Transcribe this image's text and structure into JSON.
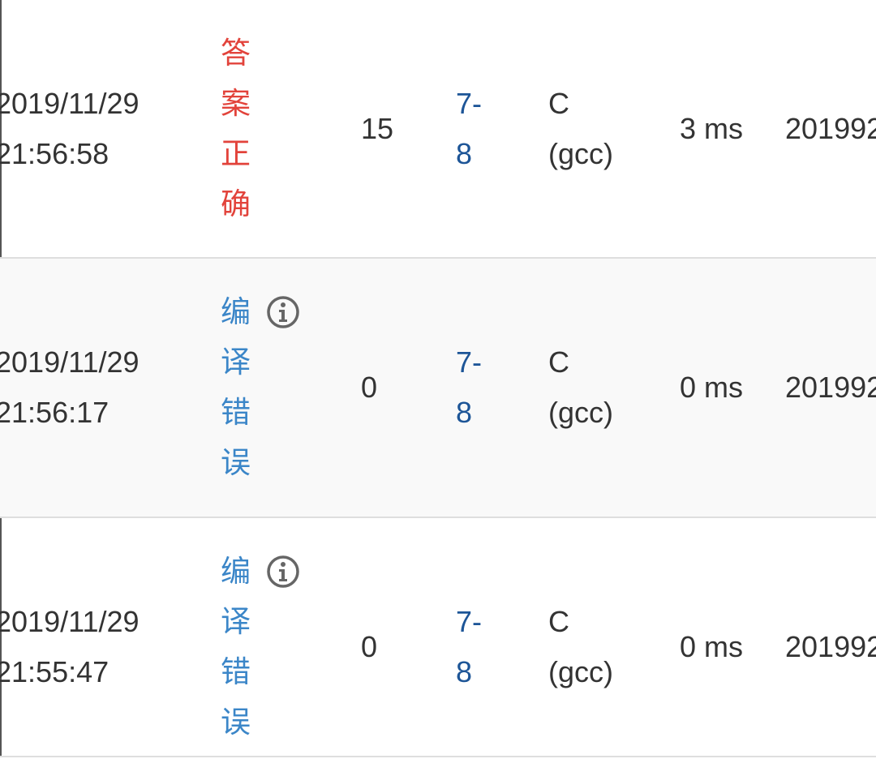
{
  "table": {
    "rows": [
      {
        "submitted": "2019/11/29 21:56:58",
        "status": "答案正确",
        "score": "15",
        "problem": "7-8",
        "language": "C (gcc)",
        "time": "3 ms",
        "user": "201992"
      },
      {
        "submitted": "2019/11/29 21:56:17",
        "status": "编译错误",
        "score": "0",
        "problem": "7-8",
        "language": "C (gcc)",
        "time": "0 ms",
        "user": "201992"
      },
      {
        "submitted": "2019/11/29 21:55:47",
        "status": "编译错误",
        "score": "0",
        "problem": "7-8",
        "language": "C (gcc)",
        "time": "0 ms",
        "user": "201992"
      }
    ]
  }
}
